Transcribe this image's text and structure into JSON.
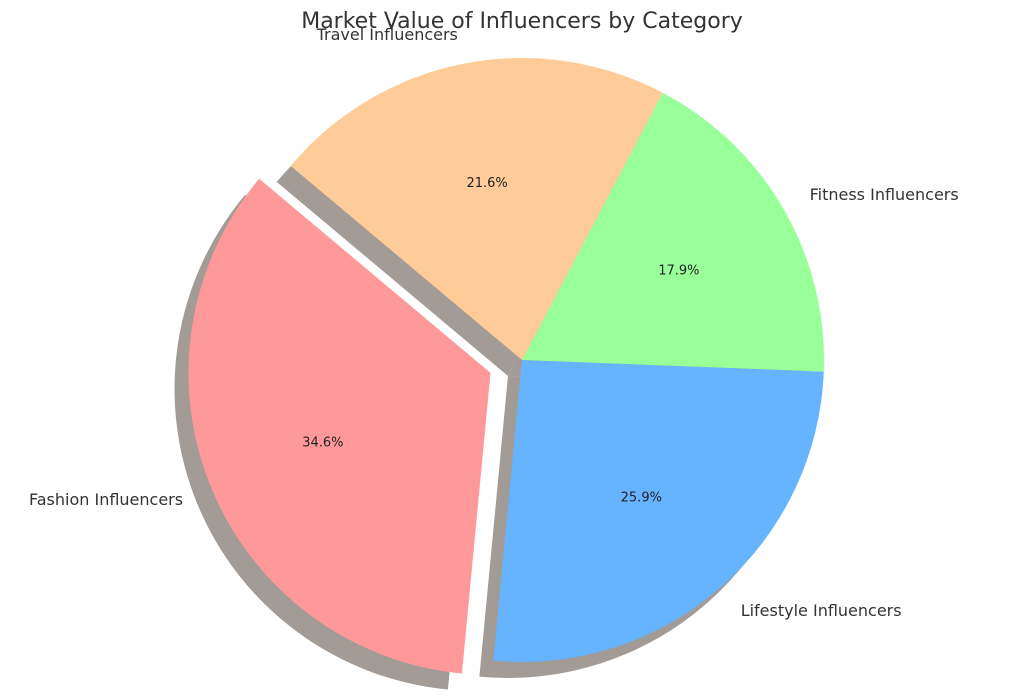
{
  "chart_data": {
    "type": "pie",
    "title": "Market Value of Influencers by Category",
    "slices": [
      {
        "label": "Fashion Influencers",
        "value": 34.6,
        "percent_label": "34.6%",
        "color": "#ff9999",
        "exploded": true
      },
      {
        "label": "Lifestyle Influencers",
        "value": 25.9,
        "percent_label": "25.9%",
        "color": "#66b3ff",
        "exploded": false
      },
      {
        "label": "Fitness Influencers",
        "value": 17.9,
        "percent_label": "17.9%",
        "color": "#99ff99",
        "exploded": false
      },
      {
        "label": "Travel Influencers",
        "value": 21.6,
        "percent_label": "21.6%",
        "color": "#ffcc99",
        "exploded": false
      }
    ],
    "shadow": true,
    "start_angle_deg": 140,
    "direction": "counterclockwise"
  }
}
